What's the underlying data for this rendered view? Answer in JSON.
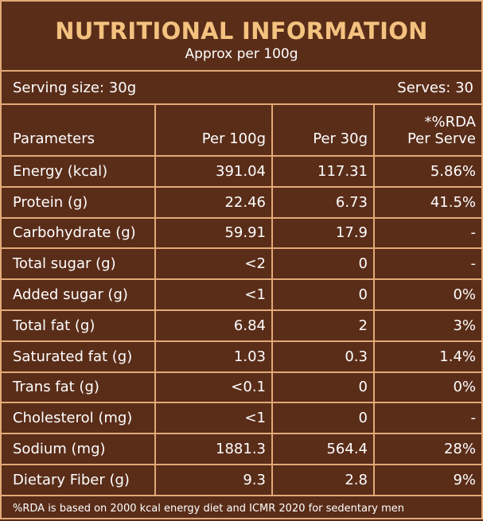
{
  "header": {
    "title": "NUTRITIONAL INFORMATION",
    "subtitle": "Approx per 100g"
  },
  "serving": {
    "size": "Serving size: 30g",
    "serves": "Serves: 30"
  },
  "columns": {
    "parameter": "Parameters",
    "per100": "Per 100g",
    "per30": "Per 30g",
    "rda_line1": "*%RDA",
    "rda_line2": "Per Serve"
  },
  "rows": [
    {
      "name": "Energy (kcal)",
      "per100": "391.04",
      "per30": "117.31",
      "rda": "5.86%"
    },
    {
      "name": "Protein (g)",
      "per100": "22.46",
      "per30": "6.73",
      "rda": "41.5%"
    },
    {
      "name": "Carbohydrate (g)",
      "per100": "59.91",
      "per30": "17.9",
      "rda": "-"
    },
    {
      "name": "Total sugar (g)",
      "per100": "<2",
      "per30": "0",
      "rda": "-"
    },
    {
      "name": "Added sugar (g)",
      "per100": "<1",
      "per30": "0",
      "rda": "0%"
    },
    {
      "name": "Total fat (g)",
      "per100": "6.84",
      "per30": "2",
      "rda": "3%"
    },
    {
      "name": "Saturated fat (g)",
      "per100": "1.03",
      "per30": "0.3",
      "rda": "1.4%"
    },
    {
      "name": "Trans fat (g)",
      "per100": "<0.1",
      "per30": "0",
      "rda": "0%"
    },
    {
      "name": "Cholesterol (mg)",
      "per100": "<1",
      "per30": "0",
      "rda": "-"
    },
    {
      "name": "Sodium (mg)",
      "per100": "1881.3",
      "per30": "564.4",
      "rda": "28%"
    },
    {
      "name": "Dietary Fiber (g)",
      "per100": "9.3",
      "per30": "2.8",
      "rda": "9%"
    }
  ],
  "footnote": "%RDA is based on 2000 kcal energy diet and ICMR 2020 for sedentary men",
  "colors": {
    "background": "#5a2d19",
    "border": "#e2a978",
    "title": "#f4c27f",
    "text": "#ffffff"
  }
}
